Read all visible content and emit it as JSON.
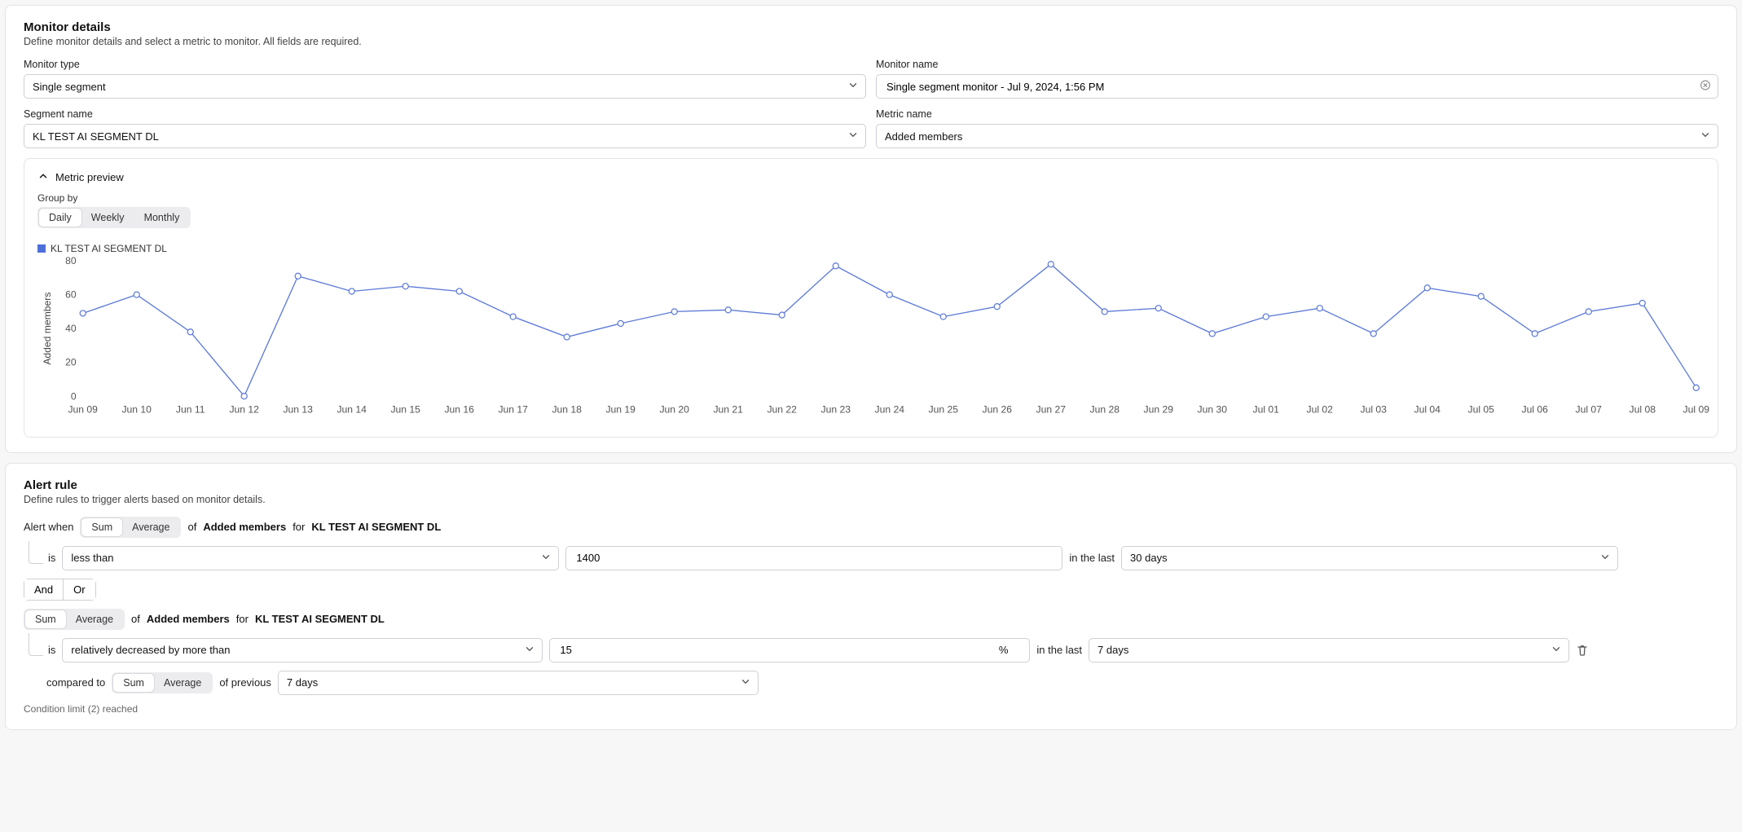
{
  "monitor_details": {
    "title": "Monitor details",
    "subtitle": "Define monitor details and select a metric to monitor. All fields are required.",
    "monitor_type": {
      "label": "Monitor type",
      "value": "Single segment"
    },
    "monitor_name": {
      "label": "Monitor name",
      "value": "Single segment monitor - Jul 9, 2024, 1:56 PM"
    },
    "segment_name": {
      "label": "Segment name",
      "value": "KL TEST AI SEGMENT DL"
    },
    "metric_name": {
      "label": "Metric name",
      "value": "Added members"
    }
  },
  "metric_preview": {
    "header": "Metric preview",
    "group_by_label": "Group by",
    "group_by_options": [
      "Daily",
      "Weekly",
      "Monthly"
    ],
    "group_by_selected": "Daily",
    "legend_label": "KL TEST AI SEGMENT DL",
    "legend_color": "#4e6fd8",
    "chart": {
      "type": "line",
      "ylabel": "Added members",
      "ylim": [
        0,
        80
      ],
      "ytick_step": 20,
      "label_fontsize": 12,
      "line_color": "#5b79d6",
      "marker_fill": "#ffffff",
      "marker_stroke": "#5b79d6",
      "marker_radius": 3.5,
      "line_width": 1.3,
      "background_color": "#ffffff",
      "grid": false,
      "categories": [
        "Jun 09",
        "Jun 10",
        "Jun 11",
        "Jun 12",
        "Jun 13",
        "Jun 14",
        "Jun 15",
        "Jun 16",
        "Jun 17",
        "Jun 18",
        "Jun 19",
        "Jun 20",
        "Jun 21",
        "Jun 22",
        "Jun 23",
        "Jun 24",
        "Jun 25",
        "Jun 26",
        "Jun 27",
        "Jun 28",
        "Jun 29",
        "Jun 30",
        "Jul 01",
        "Jul 02",
        "Jul 03",
        "Jul 04",
        "Jul 05",
        "Jul 06",
        "Jul 07",
        "Jul 08",
        "Jul 09"
      ],
      "values": [
        49,
        60,
        38,
        0,
        71,
        62,
        65,
        62,
        47,
        35,
        43,
        50,
        51,
        48,
        77,
        60,
        47,
        53,
        78,
        50,
        52,
        37,
        47,
        52,
        37,
        64,
        59,
        37,
        50,
        55,
        5
      ]
    }
  },
  "alert_rule": {
    "title": "Alert rule",
    "subtitle": "Define rules to trigger alerts based on monitor details.",
    "alert_when_label": "Alert when",
    "sum_label": "Sum",
    "average_label": "Average",
    "of_label": "of",
    "for_label": "for",
    "metric_ref": "Added members",
    "segment_ref": "KL TEST AI SEGMENT DL",
    "condition1": {
      "is_label": "is",
      "comparator": "less than",
      "threshold": "1400",
      "in_last_label": "in the last",
      "window": "30 days"
    },
    "combiner": {
      "and": "And",
      "or": "Or",
      "selected": "Or"
    },
    "condition2": {
      "agg_selected": "Sum",
      "is_label": "is",
      "comparator": "relatively decreased by more than",
      "threshold": "15",
      "threshold_suffix": "%",
      "in_last_label": "in the last",
      "window": "7 days",
      "compared_to_label": "compared to",
      "prev_agg_selected": "Sum",
      "of_previous_label": "of previous",
      "prev_window": "7 days"
    },
    "limit_note": "Condition limit (2) reached"
  },
  "colors": {
    "border": "#e4e4e7",
    "input_border": "#d0d0d5",
    "text_muted": "#666"
  }
}
